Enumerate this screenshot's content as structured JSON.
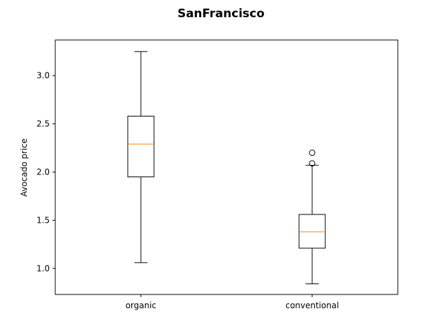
{
  "chart_data": {
    "type": "box",
    "title": "SanFrancisco",
    "xlabel": "",
    "ylabel": "Avocado price",
    "ylim": [
      0.73,
      3.37
    ],
    "yticks": [
      "1.0",
      "1.5",
      "2.0",
      "2.5",
      "3.0"
    ],
    "grid": false,
    "categories": [
      "organic",
      "conventional"
    ],
    "boxes": [
      {
        "category": "organic",
        "whisker_low": 1.06,
        "q1": 1.95,
        "median": 2.29,
        "q3": 2.58,
        "whisker_high": 3.25,
        "outliers": []
      },
      {
        "category": "conventional",
        "whisker_low": 0.84,
        "q1": 1.21,
        "median": 1.38,
        "q3": 1.56,
        "whisker_high": 2.07,
        "outliers": [
          2.09,
          2.2
        ]
      }
    ],
    "colors": {
      "box": "#000000",
      "median": "#ff7f0e"
    }
  }
}
